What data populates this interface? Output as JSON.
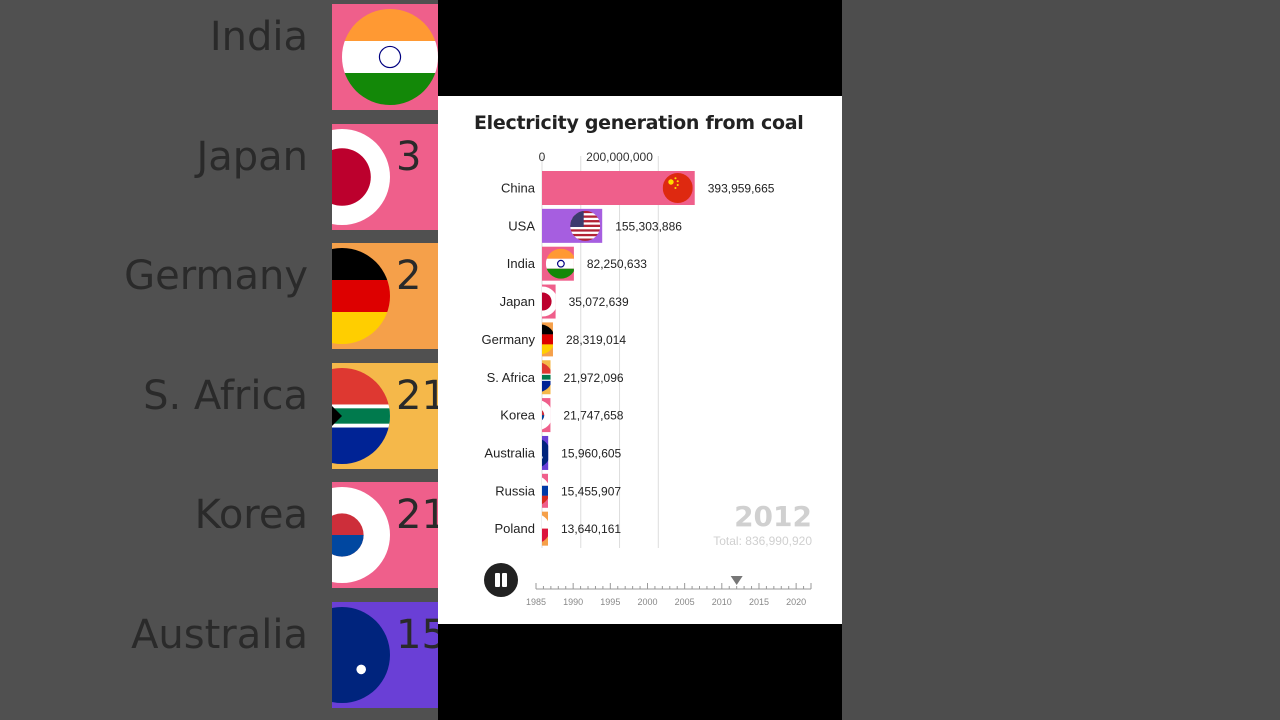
{
  "chart_data": {
    "type": "bar",
    "title": "Electricity generation from coal",
    "year": "2012",
    "total_text": "Total: 836,990,920",
    "axis_ticks": [
      0,
      200000000
    ],
    "axis_tick_labels": [
      "0",
      "200,000,000"
    ],
    "xlim": [
      0,
      730000000
    ],
    "categories": [
      "China",
      "USA",
      "India",
      "Japan",
      "Germany",
      "S. Africa",
      "Korea",
      "Australia",
      "Russia",
      "Poland"
    ],
    "values": [
      393959665,
      155303886,
      82250633,
      35072639,
      28319014,
      21972096,
      21747658,
      15960605,
      15455907,
      13640161
    ],
    "value_labels": [
      "393,959,665",
      "155,303,886",
      "82,250,633",
      "35,072,639",
      "28,319,014",
      "21,972,096",
      "21,747,658",
      "15,960,605",
      "15,455,907",
      "13,640,161"
    ],
    "colors": [
      "#ef5f8b",
      "#a65ee0",
      "#ef5f8b",
      "#ef5f8b",
      "#f5a04a",
      "#f5b84a",
      "#ef5f8b",
      "#6a3fd6",
      "#ef5f8b",
      "#f5a04a"
    ],
    "flag_icons": [
      "china-flag-icon",
      "usa-flag-icon",
      "india-flag-icon",
      "japan-flag-icon",
      "germany-flag-icon",
      "south-africa-flag-icon",
      "korea-flag-icon",
      "australia-flag-icon",
      "russia-flag-icon",
      "poland-flag-icon"
    ]
  },
  "timeline": {
    "years": [
      "1985",
      "1990",
      "1995",
      "2000",
      "2005",
      "2010",
      "2015",
      "2020"
    ],
    "start_year": 1985,
    "end_year": 2022,
    "current_year": 2012
  },
  "background": {
    "labels": [
      "India",
      "Japan",
      "Germany",
      "S. Africa",
      "Korea",
      "Australia"
    ],
    "numbers": [
      "",
      "3",
      "2",
      "21",
      "21",
      "15"
    ]
  }
}
